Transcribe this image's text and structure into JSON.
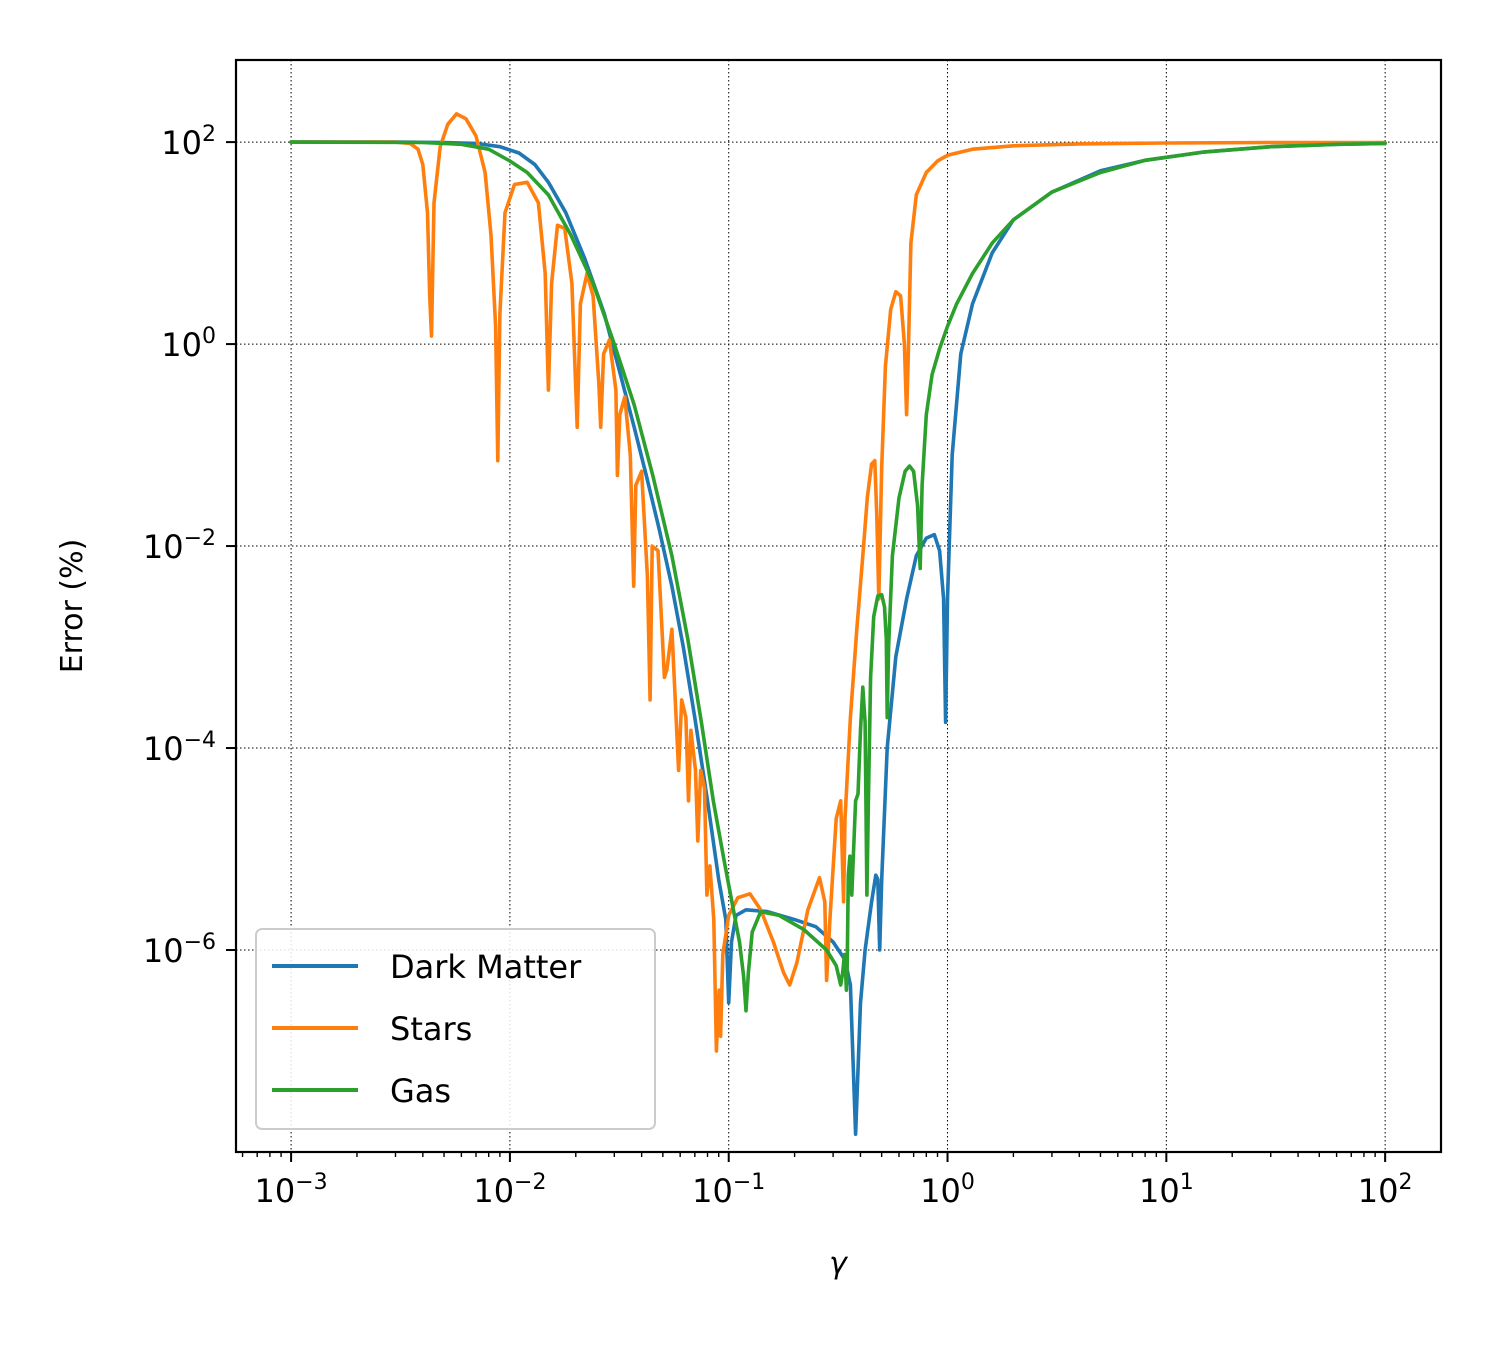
{
  "chart_data": {
    "type": "line",
    "xlabel": "γ",
    "ylabel": "Error (%)",
    "xscale": "log",
    "yscale": "log",
    "xlim": [
      0.00056,
      180
    ],
    "ylim": [
      1e-08,
      650
    ],
    "grid": true,
    "legend_position": "lower-left",
    "x_ticks": [
      {
        "base": "10",
        "exp": "−3",
        "value": 0.001
      },
      {
        "base": "10",
        "exp": "−2",
        "value": 0.01
      },
      {
        "base": "10",
        "exp": "−1",
        "value": 0.1
      },
      {
        "base": "10",
        "exp": "0",
        "value": 1
      },
      {
        "base": "10",
        "exp": "1",
        "value": 10
      },
      {
        "base": "10",
        "exp": "2",
        "value": 100
      }
    ],
    "y_ticks": [
      {
        "base": "10",
        "exp": "2",
        "value": 100
      },
      {
        "base": "10",
        "exp": "0",
        "value": 1
      },
      {
        "base": "10",
        "exp": "−2",
        "value": 0.01
      },
      {
        "base": "10",
        "exp": "−4",
        "value": 0.0001
      },
      {
        "base": "10",
        "exp": "−6",
        "value": 1e-06
      }
    ],
    "series": [
      {
        "name": "Dark Matter",
        "color": "#1f77b4",
        "points": [
          [
            0.001,
            100
          ],
          [
            0.003,
            100
          ],
          [
            0.005,
            99
          ],
          [
            0.007,
            97
          ],
          [
            0.009,
            90
          ],
          [
            0.011,
            78
          ],
          [
            0.013,
            60
          ],
          [
            0.015,
            40
          ],
          [
            0.018,
            20
          ],
          [
            0.022,
            7
          ],
          [
            0.027,
            2
          ],
          [
            0.032,
            0.5
          ],
          [
            0.037,
            0.15
          ],
          [
            0.042,
            0.05
          ],
          [
            0.048,
            0.015
          ],
          [
            0.055,
            0.004
          ],
          [
            0.062,
            0.001
          ],
          [
            0.07,
            0.0002
          ],
          [
            0.08,
            3e-05
          ],
          [
            0.09,
            5e-06
          ],
          [
            0.097,
            2e-06
          ],
          [
            0.1,
            3e-07
          ],
          [
            0.103,
            1.2e-06
          ],
          [
            0.108,
            2.2e-06
          ],
          [
            0.12,
            2.5e-06
          ],
          [
            0.15,
            2.4e-06
          ],
          [
            0.2,
            2e-06
          ],
          [
            0.25,
            1.7e-06
          ],
          [
            0.3,
            1.2e-06
          ],
          [
            0.34,
            8e-07
          ],
          [
            0.36,
            4.5e-07
          ],
          [
            0.38,
            1.5e-08
          ],
          [
            0.4,
            3e-07
          ],
          [
            0.42,
            1e-06
          ],
          [
            0.45,
            3e-06
          ],
          [
            0.47,
            5.5e-06
          ],
          [
            0.48,
            5e-06
          ],
          [
            0.49,
            1e-06
          ],
          [
            0.5,
            5e-06
          ],
          [
            0.53,
            0.0001
          ],
          [
            0.58,
            0.0008
          ],
          [
            0.65,
            0.003
          ],
          [
            0.72,
            0.008
          ],
          [
            0.8,
            0.012
          ],
          [
            0.87,
            0.013
          ],
          [
            0.92,
            0.009
          ],
          [
            0.96,
            0.003
          ],
          [
            0.98,
            0.00018
          ],
          [
            1.0,
            0.003
          ],
          [
            1.05,
            0.08
          ],
          [
            1.15,
            0.8
          ],
          [
            1.3,
            2.5
          ],
          [
            1.6,
            8
          ],
          [
            2,
            17
          ],
          [
            3,
            32
          ],
          [
            5,
            52
          ],
          [
            8,
            66
          ],
          [
            15,
            80
          ],
          [
            30,
            90
          ],
          [
            60,
            95
          ],
          [
            100,
            97
          ]
        ]
      },
      {
        "name": "Stars",
        "color": "#ff7f0e",
        "points": [
          [
            0.001,
            100
          ],
          [
            0.003,
            100
          ],
          [
            0.0035,
            97
          ],
          [
            0.0038,
            85
          ],
          [
            0.004,
            60
          ],
          [
            0.0042,
            20
          ],
          [
            0.0043,
            3
          ],
          [
            0.00438,
            1.2
          ],
          [
            0.0045,
            25
          ],
          [
            0.0048,
            90
          ],
          [
            0.0052,
            150
          ],
          [
            0.0057,
            190
          ],
          [
            0.0063,
            170
          ],
          [
            0.007,
            115
          ],
          [
            0.0077,
            50
          ],
          [
            0.0082,
            12
          ],
          [
            0.0086,
            1.5
          ],
          [
            0.0088,
            0.07
          ],
          [
            0.009,
            2
          ],
          [
            0.0095,
            20
          ],
          [
            0.0105,
            38
          ],
          [
            0.012,
            40
          ],
          [
            0.0135,
            25
          ],
          [
            0.0145,
            5
          ],
          [
            0.015,
            0.35
          ],
          [
            0.0155,
            4
          ],
          [
            0.0165,
            15
          ],
          [
            0.0178,
            14
          ],
          [
            0.0192,
            4
          ],
          [
            0.0203,
            0.15
          ],
          [
            0.021,
            2.5
          ],
          [
            0.0225,
            5
          ],
          [
            0.024,
            3
          ],
          [
            0.0255,
            0.4
          ],
          [
            0.026,
            0.15
          ],
          [
            0.0268,
            0.8
          ],
          [
            0.0285,
            1.1
          ],
          [
            0.0305,
            0.35
          ],
          [
            0.031,
            0.05
          ],
          [
            0.0318,
            0.2
          ],
          [
            0.0335,
            0.3
          ],
          [
            0.0355,
            0.08
          ],
          [
            0.0368,
            0.004
          ],
          [
            0.0376,
            0.04
          ],
          [
            0.04,
            0.055
          ],
          [
            0.0425,
            0.005
          ],
          [
            0.0437,
            0.0003
          ],
          [
            0.0447,
            0.01
          ],
          [
            0.0475,
            0.009
          ],
          [
            0.0508,
            0.0005
          ],
          [
            0.0522,
            0.0006
          ],
          [
            0.055,
            0.0015
          ],
          [
            0.0575,
            0.0002
          ],
          [
            0.059,
            6e-05
          ],
          [
            0.061,
            0.0003
          ],
          [
            0.0637,
            0.0002
          ],
          [
            0.0655,
            3e-05
          ],
          [
            0.0672,
            0.00015
          ],
          [
            0.0705,
            6e-05
          ],
          [
            0.0722,
            1.2e-05
          ],
          [
            0.0745,
            6e-05
          ],
          [
            0.0775,
            4e-05
          ],
          [
            0.0795,
            3.5e-06
          ],
          [
            0.082,
            6.8e-06
          ],
          [
            0.0855,
            2e-06
          ],
          [
            0.0878,
            1e-07
          ],
          [
            0.089,
            2e-07
          ],
          [
            0.0905,
            4e-07
          ],
          [
            0.0918,
            1.4e-07
          ],
          [
            0.094,
            9e-07
          ],
          [
            0.1,
            2.2e-06
          ],
          [
            0.11,
            3.3e-06
          ],
          [
            0.125,
            3.6e-06
          ],
          [
            0.14,
            2.5e-06
          ],
          [
            0.16,
            1.2e-06
          ],
          [
            0.178,
            6e-07
          ],
          [
            0.19,
            4.5e-07
          ],
          [
            0.205,
            7.5e-07
          ],
          [
            0.23,
            2.5e-06
          ],
          [
            0.26,
            5.2e-06
          ],
          [
            0.275,
            3e-06
          ],
          [
            0.28,
            5e-07
          ],
          [
            0.29,
            2e-06
          ],
          [
            0.31,
            2e-05
          ],
          [
            0.325,
            3e-05
          ],
          [
            0.335,
            3e-06
          ],
          [
            0.34,
            2e-05
          ],
          [
            0.36,
            0.0002
          ],
          [
            0.385,
            0.0015
          ],
          [
            0.41,
            0.008
          ],
          [
            0.43,
            0.03
          ],
          [
            0.45,
            0.065
          ],
          [
            0.465,
            0.07
          ],
          [
            0.475,
            0.02
          ],
          [
            0.485,
            0.003
          ],
          [
            0.5,
            0.06
          ],
          [
            0.52,
            0.6
          ],
          [
            0.55,
            2.2
          ],
          [
            0.58,
            3.3
          ],
          [
            0.61,
            3
          ],
          [
            0.635,
            1
          ],
          [
            0.65,
            0.2
          ],
          [
            0.66,
            0.6
          ],
          [
            0.68,
            10
          ],
          [
            0.72,
            30
          ],
          [
            0.8,
            50
          ],
          [
            0.9,
            65
          ],
          [
            1.0,
            74
          ],
          [
            1.3,
            85
          ],
          [
            2,
            92
          ],
          [
            4,
            96
          ],
          [
            10,
            98
          ],
          [
            30,
            99
          ],
          [
            100,
            99
          ]
        ]
      },
      {
        "name": "Gas",
        "color": "#2ca02c",
        "points": [
          [
            0.001,
            100
          ],
          [
            0.004,
            99
          ],
          [
            0.006,
            95
          ],
          [
            0.008,
            85
          ],
          [
            0.01,
            65
          ],
          [
            0.012,
            50
          ],
          [
            0.015,
            30
          ],
          [
            0.019,
            12
          ],
          [
            0.024,
            4
          ],
          [
            0.03,
            1
          ],
          [
            0.037,
            0.25
          ],
          [
            0.045,
            0.05
          ],
          [
            0.055,
            0.008
          ],
          [
            0.065,
            0.0012
          ],
          [
            0.075,
            0.00018
          ],
          [
            0.085,
            3e-05
          ],
          [
            0.095,
            8e-06
          ],
          [
            0.105,
            2.5e-06
          ],
          [
            0.112,
            1.2e-06
          ],
          [
            0.117,
            5.5e-07
          ],
          [
            0.12,
            2.5e-07
          ],
          [
            0.123,
            6e-07
          ],
          [
            0.128,
            1.5e-06
          ],
          [
            0.14,
            2.4e-06
          ],
          [
            0.17,
            2.2e-06
          ],
          [
            0.22,
            1.6e-06
          ],
          [
            0.28,
            1e-06
          ],
          [
            0.31,
            7e-07
          ],
          [
            0.325,
            4.5e-07
          ],
          [
            0.332,
            6e-07
          ],
          [
            0.338,
            9e-07
          ],
          [
            0.342,
            6e-07
          ],
          [
            0.345,
            4e-07
          ],
          [
            0.348,
            7e-07
          ],
          [
            0.352,
            5.5e-06
          ],
          [
            0.358,
            8.5e-06
          ],
          [
            0.365,
            3.5e-06
          ],
          [
            0.37,
            7e-06
          ],
          [
            0.38,
            3e-05
          ],
          [
            0.39,
            3.5e-05
          ],
          [
            0.4,
            0.00015
          ],
          [
            0.41,
            0.0004
          ],
          [
            0.42,
            0.00018
          ],
          [
            0.428,
            3.5e-06
          ],
          [
            0.435,
            3e-05
          ],
          [
            0.445,
            0.0005
          ],
          [
            0.46,
            0.002
          ],
          [
            0.48,
            0.0032
          ],
          [
            0.5,
            0.0033
          ],
          [
            0.515,
            0.0025
          ],
          [
            0.525,
            0.0012
          ],
          [
            0.53,
            0.0002
          ],
          [
            0.538,
            0.001
          ],
          [
            0.56,
            0.008
          ],
          [
            0.6,
            0.03
          ],
          [
            0.64,
            0.055
          ],
          [
            0.67,
            0.062
          ],
          [
            0.7,
            0.055
          ],
          [
            0.73,
            0.025
          ],
          [
            0.745,
            0.008
          ],
          [
            0.75,
            0.006
          ],
          [
            0.765,
            0.04
          ],
          [
            0.8,
            0.2
          ],
          [
            0.85,
            0.5
          ],
          [
            0.92,
            0.9
          ],
          [
            1.0,
            1.5
          ],
          [
            1.1,
            2.5
          ],
          [
            1.3,
            5
          ],
          [
            1.6,
            10
          ],
          [
            2,
            17
          ],
          [
            3,
            32
          ],
          [
            5,
            50
          ],
          [
            8,
            66
          ],
          [
            15,
            80
          ],
          [
            30,
            90
          ],
          [
            60,
            95
          ],
          [
            100,
            97
          ]
        ]
      }
    ]
  }
}
